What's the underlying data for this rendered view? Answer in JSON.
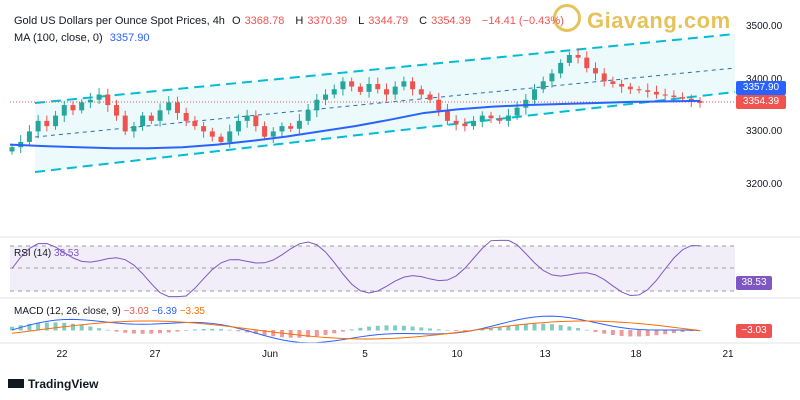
{
  "header": {
    "title": "Gold US Dollars per Ounce Spot Prices, 4h",
    "open_label": "O",
    "open": "3368.78",
    "high_label": "H",
    "high": "3370.39",
    "low_label": "L",
    "low": "3344.79",
    "close_label": "C",
    "close": "3354.39",
    "change": "−14.41 (−0.43%)"
  },
  "ma_label": {
    "name": "MA (100, close, 0)",
    "value": "3357.90"
  },
  "rsi_label": {
    "name": "RSI (14)",
    "value": "38.53"
  },
  "macd_label": {
    "name": "MACD (12, 26, close, 9)",
    "v1": "−3.03",
    "v2": "−6.39",
    "v3": "−3.35"
  },
  "watermark": "Giavang.com",
  "branding": "TradingView",
  "price_axis": [
    "3500.00",
    "3400.00",
    "3300.00",
    "3200.00"
  ],
  "tags": {
    "ma": "3357.90",
    "price": "3354.39",
    "rsi": "38.53",
    "macd": "−3.03"
  },
  "x_axis": [
    "22",
    "27",
    "Jun",
    "5",
    "10",
    "13",
    "18",
    "21"
  ],
  "colors": {
    "up": "#26a69a",
    "down": "#ef5350",
    "ma": "#2962ff",
    "channel": "#00bcd4",
    "rsi": "#7e57c2",
    "macd": "#2962ff",
    "signal": "#ff6d00"
  },
  "chart_data": {
    "type": "candlestick",
    "ylim": [
      3170,
      3520
    ],
    "candles_approx": "Gold 4h, late May to mid June",
    "ma_series": [
      3275,
      3272,
      3270,
      3268,
      3268,
      3270,
      3275,
      3282,
      3290,
      3300,
      3310,
      3322,
      3335,
      3342,
      3347,
      3350,
      3352,
      3354,
      3356,
      3357,
      3357.9
    ]
  }
}
